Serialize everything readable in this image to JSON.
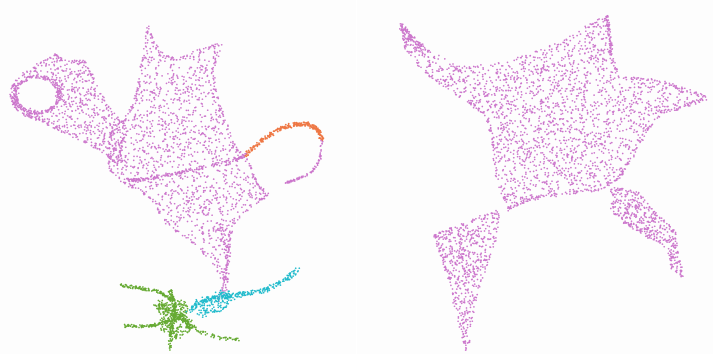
{
  "panels": [
    {
      "id": "left",
      "clusters": [
        {
          "name": "pink",
          "color": "#cc77cc"
        },
        {
          "name": "orange",
          "color": "#ee7744"
        },
        {
          "name": "cyan",
          "color": "#22bbcc"
        },
        {
          "name": "green",
          "color": "#66aa33"
        }
      ]
    },
    {
      "id": "right",
      "clusters": [
        {
          "name": "pink",
          "color": "#cc77cc"
        }
      ]
    }
  ]
}
